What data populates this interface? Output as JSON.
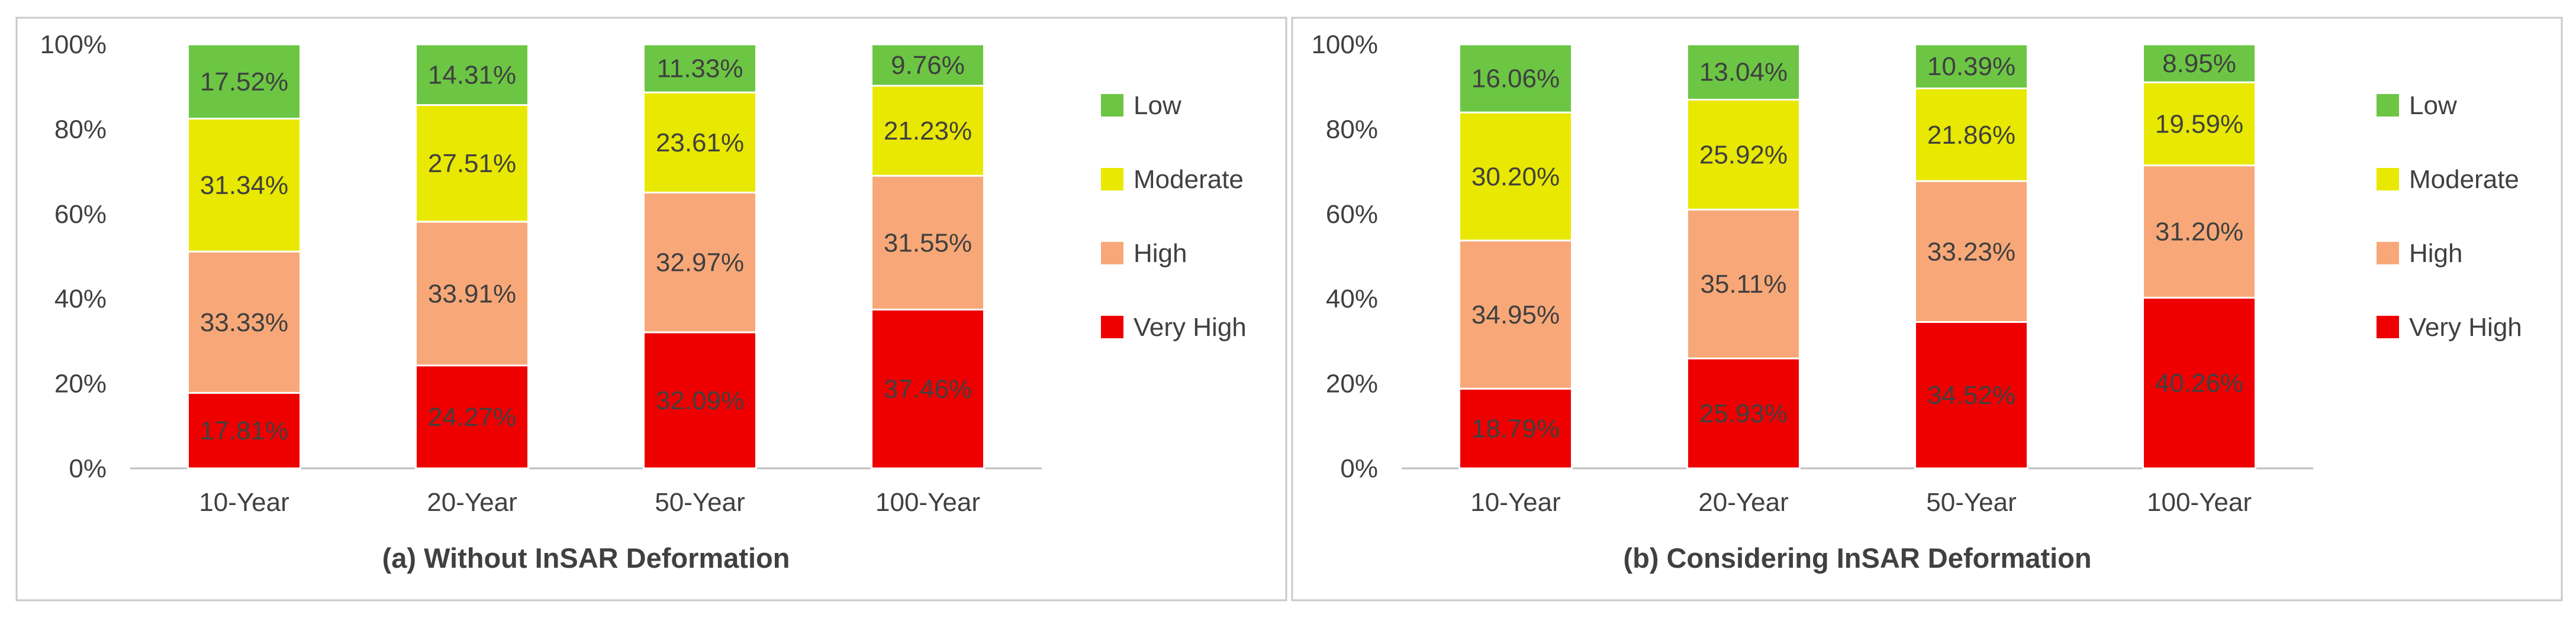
{
  "chart_data": [
    {
      "type": "bar",
      "stacked": true,
      "percent": true,
      "title": "(a) Without InSAR Deformation",
      "categories": [
        "10-Year",
        "20-Year",
        "50-Year",
        "100-Year"
      ],
      "ylim": [
        0,
        100
      ],
      "yticks": [
        "0%",
        "20%",
        "40%",
        "60%",
        "80%",
        "100%"
      ],
      "legend_position": "right",
      "series": [
        {
          "name": "Very High",
          "color": "#ee0000",
          "values": [
            17.81,
            24.27,
            32.09,
            37.46
          ],
          "labels": [
            "17.81%",
            "24.27%",
            "32.09%",
            "37.46%"
          ]
        },
        {
          "name": "High",
          "color": "#f8a878",
          "values": [
            33.33,
            33.91,
            32.97,
            31.55
          ],
          "labels": [
            "33.33%",
            "33.91%",
            "32.97%",
            "31.55%"
          ]
        },
        {
          "name": "Moderate",
          "color": "#e8e800",
          "values": [
            31.34,
            27.51,
            23.61,
            21.23
          ],
          "labels": [
            "31.34%",
            "27.51%",
            "23.61%",
            "21.23%"
          ]
        },
        {
          "name": "Low",
          "color": "#6cc644",
          "values": [
            17.52,
            14.31,
            11.33,
            9.76
          ],
          "labels": [
            "17.52%",
            "14.31%",
            "11.33%",
            "9.76%"
          ]
        }
      ]
    },
    {
      "type": "bar",
      "stacked": true,
      "percent": true,
      "title": "(b) Considering InSAR Deformation",
      "categories": [
        "10-Year",
        "20-Year",
        "50-Year",
        "100-Year"
      ],
      "ylim": [
        0,
        100
      ],
      "yticks": [
        "0%",
        "20%",
        "40%",
        "60%",
        "80%",
        "100%"
      ],
      "legend_position": "right",
      "series": [
        {
          "name": "Very High",
          "color": "#ee0000",
          "values": [
            18.79,
            25.93,
            34.52,
            40.26
          ],
          "labels": [
            "18.79%",
            "25.93%",
            "34.52%",
            "40.26%"
          ]
        },
        {
          "name": "High",
          "color": "#f8a878",
          "values": [
            34.95,
            35.11,
            33.23,
            31.2
          ],
          "labels": [
            "34.95%",
            "35.11%",
            "33.23%",
            "31.20%"
          ]
        },
        {
          "name": "Moderate",
          "color": "#e8e800",
          "values": [
            30.2,
            25.92,
            21.86,
            19.59
          ],
          "labels": [
            "30.20%",
            "25.92%",
            "21.86%",
            "19.59%"
          ]
        },
        {
          "name": "Low",
          "color": "#6cc644",
          "values": [
            16.06,
            13.04,
            10.39,
            8.95
          ],
          "labels": [
            "16.06%",
            "13.04%",
            "10.39%",
            "8.95%"
          ]
        }
      ]
    }
  ]
}
